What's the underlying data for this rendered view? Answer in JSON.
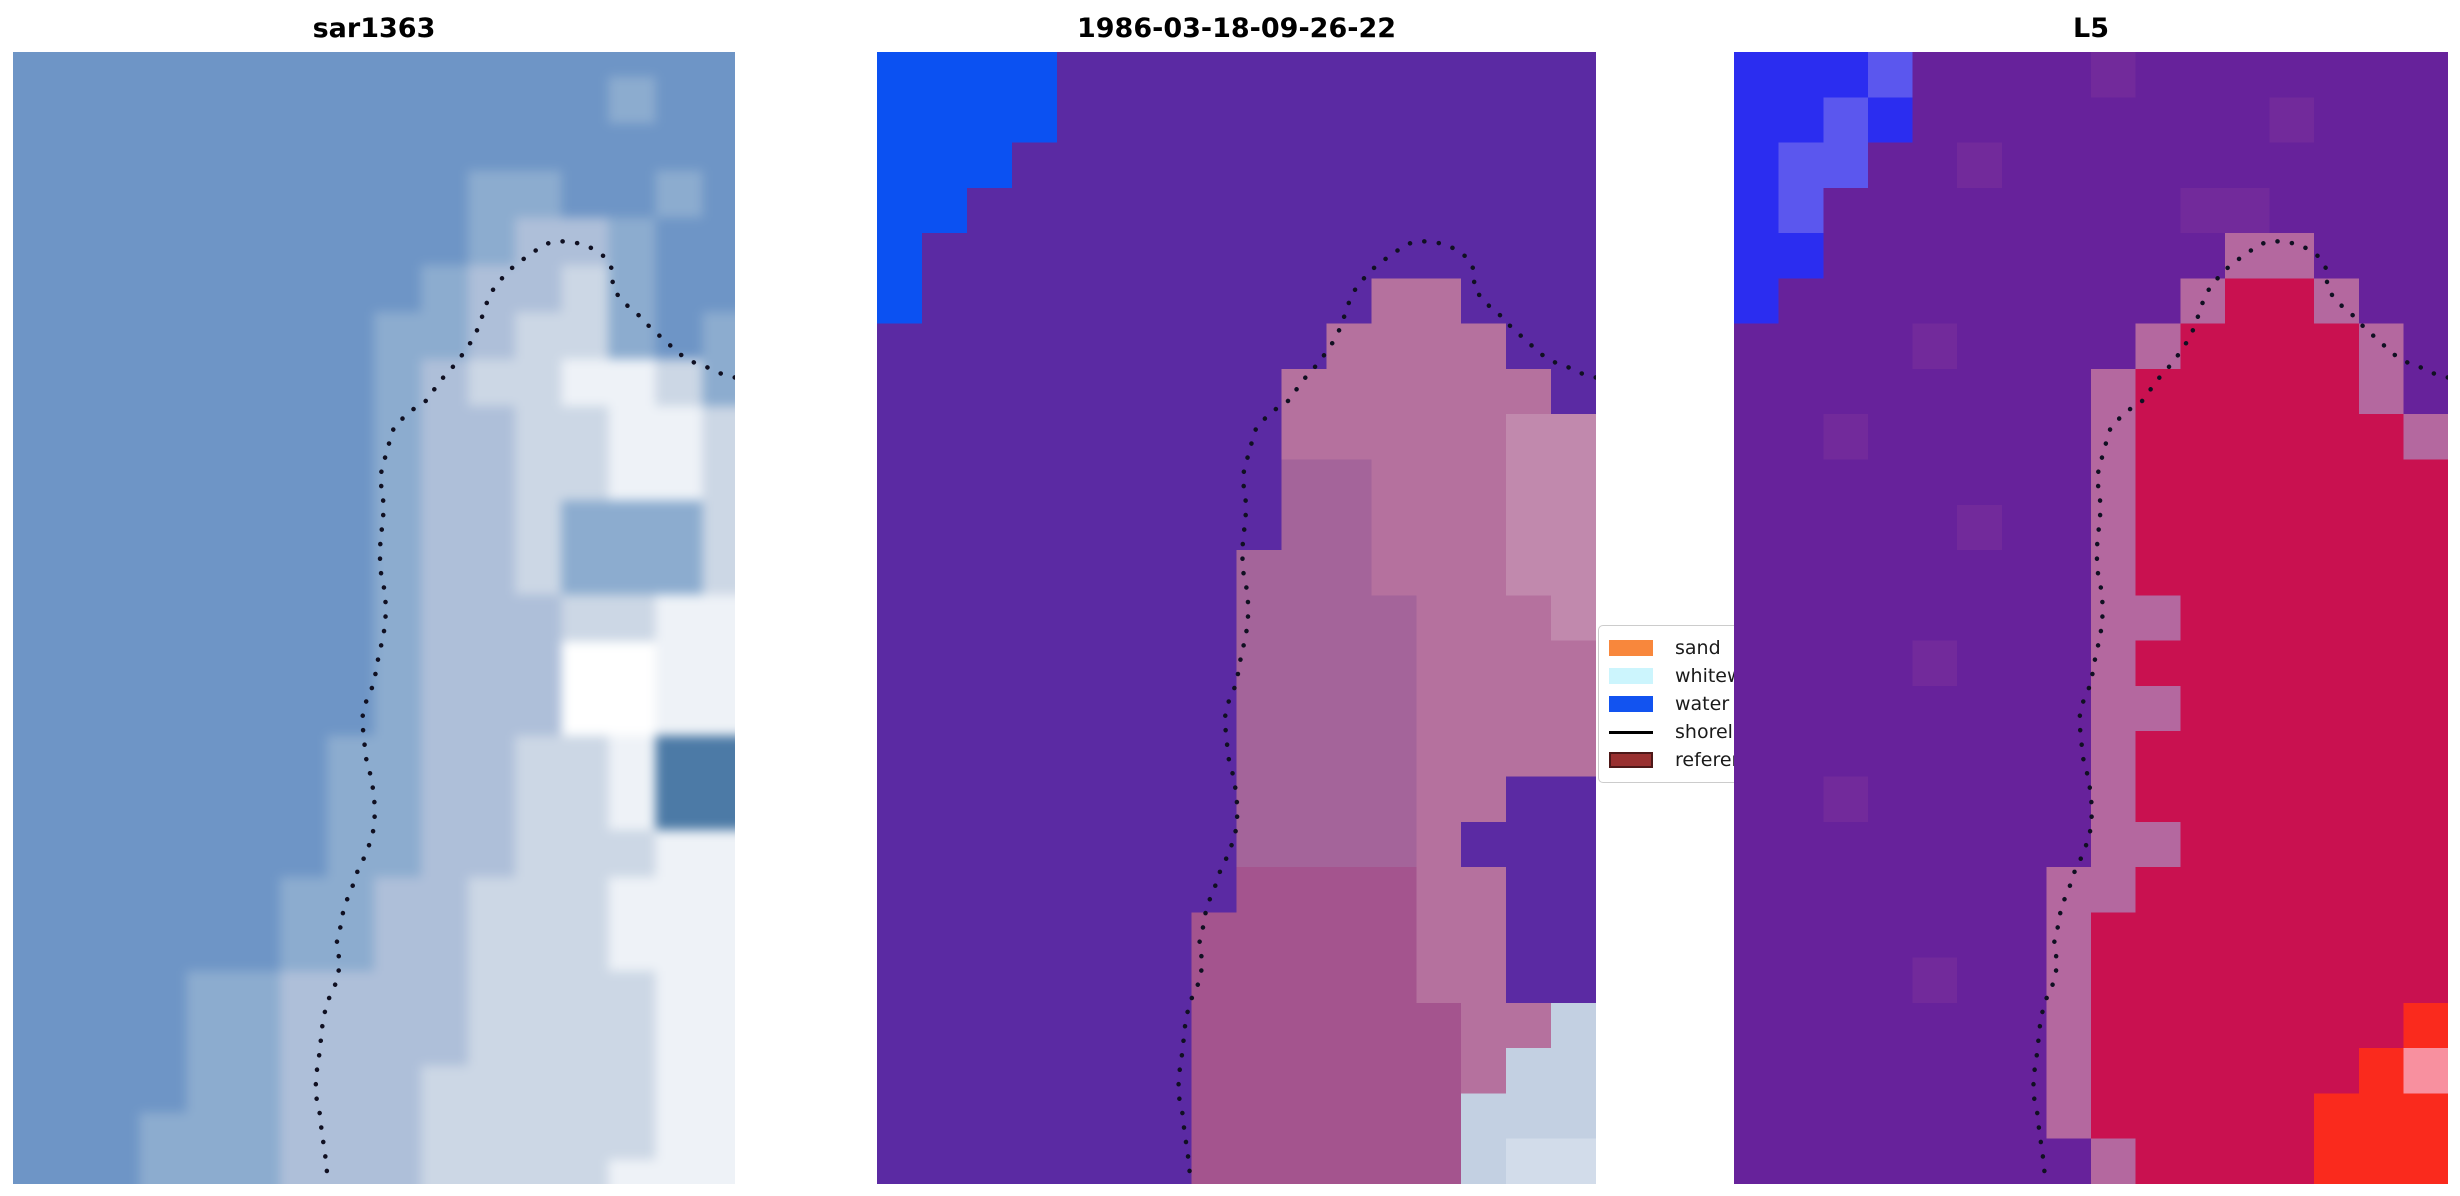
{
  "figure": {
    "background": "#ffffff"
  },
  "chart_data": {
    "type": "heatmap",
    "subtype": "satellite-image-triptych",
    "titles": [
      "sar1363",
      "1986-03-18-09-26-22",
      "L5"
    ],
    "legend_entries": [
      "sand",
      "whitewater",
      "water",
      "shoreline",
      "reference"
    ],
    "legend_position": "right of middle panel, clipped by third panel",
    "annotations": [
      "dotted black reference shoreline overlaid identically on all three panels"
    ],
    "axis": "none (image axes, no ticks)"
  },
  "panels": [
    {
      "title": "sar1363",
      "grid": {
        "cols": 16,
        "rows": 25,
        "palette": {
          "b": "#6e95c6",
          "c": "#8caccf",
          "d": "#aebfd9",
          "e": "#ccd7e5",
          "f": "#eef2f7",
          "w": "#ffffff",
          "g": "#4c7aa6"
        },
        "cells": [
          "bbbbbbbbbbbbbbbb",
          "bbbbbbbbbbbbbcbb",
          "bbbbbbbbbbbbbbbb",
          "bbbbbbbbbbccbbcb",
          "bbbbbbbbbbcddcbb",
          "bbbbbbbbbcddecbb",
          "bbbbbbbbccdeecbc",
          "bbbbbbbbcdeeffec",
          "bbbbbbbbcddeeffe",
          "bbbbbbbbcddeeffe",
          "bbbbbbbbcddeccce",
          "bbbbbbbbcddeccce",
          "bbbbbbbbcdddeeff",
          "bbbbbbbbcdddwwff",
          "bbbbbbbbcdddwwff",
          "bbbbbbbccddeefgg",
          "bbbbbbbccddeefgg",
          "bbbbbbbccddeeeff",
          "bbbbbbccddeeefff",
          "bbbbbbccddeeefff",
          "bbbbccddddeeeeff",
          "bbbbccddddeeeeff",
          "bbbbccdddeeeeeff",
          "bbbcccdddeeeeeff",
          "bbbcccdddeeeefff"
        ]
      }
    },
    {
      "title": "1986-03-18-09-26-22",
      "grid": {
        "cols": 16,
        "rows": 25,
        "palette": {
          "B": "#0b51f2",
          "P": "#5b2aa3",
          "K": "#b5719e",
          "L": "#c189ad",
          "M": "#a4649a",
          "N": "#a4548e",
          "V": "#c3d0e2",
          "W": "#d2dcea"
        },
        "cells": [
          "BBBBPPPPPPPPPPPP",
          "BBBBPPPPPPPPPPPP",
          "BBBPPPPPPPPPPPPP",
          "BBPPPPPPPPPPPPPP",
          "BPPPPPPPPPPPPPPP",
          "BPPPPPPPPPPKKPPP",
          "PPPPPPPPPPKKKKPP",
          "PPPPPPPPPKKKKKKP",
          "PPPPPPPPPKKKKKLL",
          "PPPPPPPPPMMKKKLL",
          "PPPPPPPPPMMKKKLL",
          "PPPPPPPPMMMKKKLL",
          "PPPPPPPPMMMMKKKL",
          "PPPPPPPPMMMMKKKK",
          "PPPPPPPPMMMMKKKK",
          "PPPPPPPPMMMMKKKK",
          "PPPPPPPPMMMMKKPP",
          "PPPPPPPPMMMMKPPP",
          "PPPPPPPPNNNNKKPP",
          "PPPPPPPNNNNNKKPP",
          "PPPPPPPNNNNNKKPP",
          "PPPPPPPNNNNNNKKV",
          "PPPPPPPNNNNNNKVV",
          "PPPPPPPNNNNNNVVV",
          "PPPPPPPNNNNNNVWW"
        ]
      }
    },
    {
      "title": "L5",
      "grid": {
        "cols": 16,
        "rows": 25,
        "palette": {
          "U": "#2b2df0",
          "T": "#5b57ee",
          "Q": "#67229b",
          "R": "#722a9b",
          "G": "#b4689f",
          "E": "#c91150",
          "X": "#fa2a1d",
          "Y": "#f8909f"
        },
        "cells": [
          "UUUTQQQQRQQQQQQQ",
          "UUTUQQQQQQQQRQQQ",
          "UTTQQRQQQQQQQQQQ",
          "UTQQQQQQQQRRQQQQ",
          "UUQQQQQQQQQGGQQQ",
          "UQQQQQQQQQGEEGQQ",
          "QQQQRQQQQGEEEEGQ",
          "QQQQQQQQGEEEEEGQ",
          "QQRQQQQQGEEEEEEG",
          "QQQQQQQQGEEEEEEE",
          "QQQQQRQQGEEEEEEE",
          "QQQQQQQQGEEEEEEE",
          "QQQQQQQQGGEEEEEE",
          "QQQQRQQQGEEEEEEE",
          "QQQQQQQQGGEEEEEE",
          "QQQQQQQQGEEEEEEE",
          "QQRQQQQQGEEEEEEE",
          "QQQQQQQQGGEEEEEE",
          "QQQQQQQGGEEEEEEE",
          "QQQQQQQGEEEEEEEE",
          "QQQQRQQGEEEEEEEE",
          "QQQQQQQGEEEEEEEX",
          "QQQQQQQGEEEEEEXY",
          "QQQQQQQGEEEEEXXX",
          "QQQQQQQQGEEEEXXX"
        ]
      }
    }
  ],
  "shoreline": {
    "color": "#101022",
    "points": [
      [
        313,
        1119
      ],
      [
        311,
        1100
      ],
      [
        308,
        1081
      ],
      [
        306,
        1062
      ],
      [
        302,
        1043
      ],
      [
        302,
        1025
      ],
      [
        305,
        1006
      ],
      [
        307,
        988
      ],
      [
        309,
        969
      ],
      [
        313,
        951
      ],
      [
        322,
        931
      ],
      [
        326,
        913
      ],
      [
        323,
        890
      ],
      [
        327,
        873
      ],
      [
        330,
        855
      ],
      [
        338,
        836
      ],
      [
        344,
        818
      ],
      [
        353,
        800
      ],
      [
        359,
        780
      ],
      [
        361,
        761
      ],
      [
        360,
        743
      ],
      [
        357,
        725
      ],
      [
        352,
        706
      ],
      [
        350,
        687
      ],
      [
        348,
        667
      ],
      [
        352,
        650
      ],
      [
        360,
        631
      ],
      [
        363,
        612
      ],
      [
        367,
        594
      ],
      [
        371,
        574
      ],
      [
        372,
        555
      ],
      [
        370,
        536
      ],
      [
        366,
        516
      ],
      [
        366,
        495
      ],
      [
        368,
        475
      ],
      [
        370,
        455
      ],
      [
        366,
        425
      ],
      [
        373,
        398
      ],
      [
        380,
        375
      ],
      [
        395,
        360
      ],
      [
        413,
        348
      ],
      [
        425,
        330
      ],
      [
        443,
        310
      ],
      [
        456,
        291
      ],
      [
        465,
        274
      ],
      [
        471,
        254
      ],
      [
        480,
        235
      ],
      [
        495,
        218
      ],
      [
        513,
        204
      ],
      [
        531,
        192
      ],
      [
        543,
        189
      ],
      [
        556,
        190
      ],
      [
        568,
        192
      ],
      [
        581,
        198
      ],
      [
        590,
        205
      ],
      [
        598,
        218
      ],
      [
        598,
        236
      ],
      [
        606,
        247
      ],
      [
        613,
        254
      ],
      [
        626,
        265
      ],
      [
        635,
        275
      ],
      [
        645,
        284
      ],
      [
        655,
        293
      ],
      [
        663,
        301
      ],
      [
        680,
        311
      ],
      [
        688,
        313
      ],
      [
        701,
        320
      ],
      [
        714,
        324
      ],
      [
        722,
        326
      ]
    ]
  },
  "legend": {
    "items": [
      {
        "label": "sand",
        "type": "patch",
        "fill": "#f8873c",
        "edge": "#f8873c"
      },
      {
        "label": "whitewater",
        "type": "patch",
        "fill": "#ccf5fd",
        "edge": "#ccf5fd"
      },
      {
        "label": "water",
        "type": "patch",
        "fill": "#1253f0",
        "edge": "#1253f0"
      },
      {
        "label": "shoreline",
        "type": "line",
        "fill": "#000000",
        "edge": "#000000"
      },
      {
        "label": "reference",
        "type": "patch",
        "fill": "#993030",
        "edge": "#4d1818"
      }
    ]
  }
}
